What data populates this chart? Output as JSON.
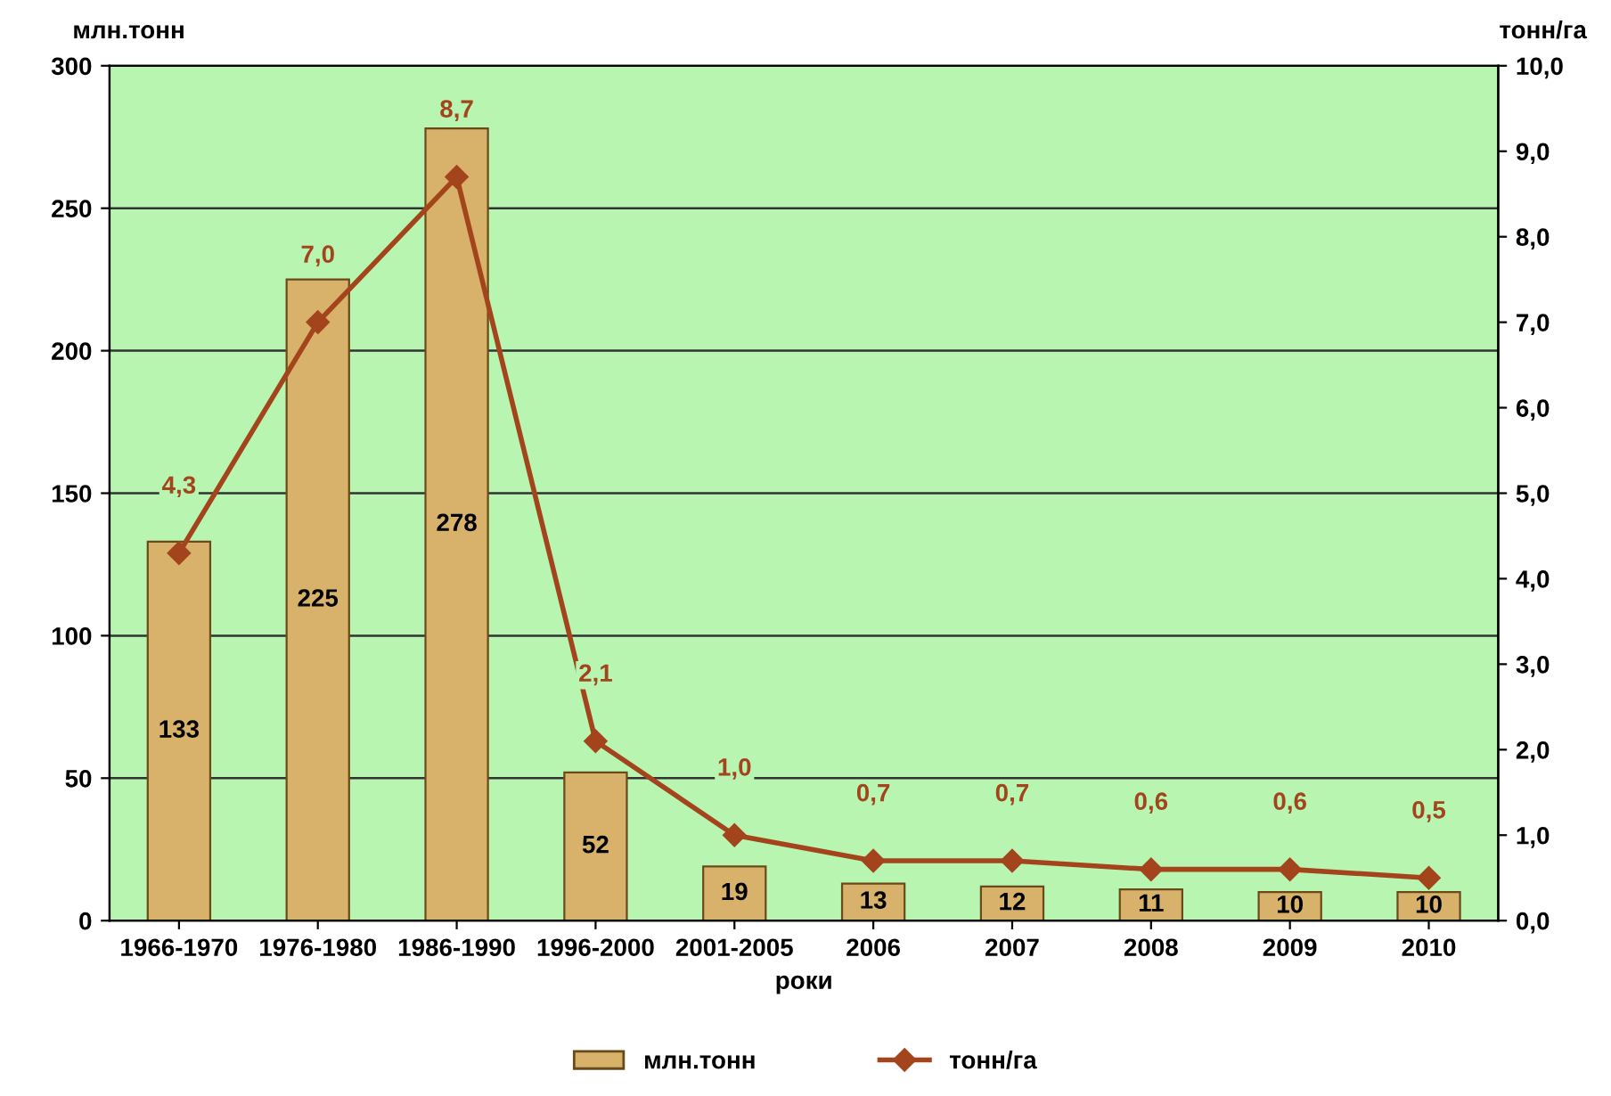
{
  "chart_data": {
    "type": "bar",
    "xlabel": "роки",
    "ylabel": "млн.тонн",
    "y2label": "тонн/га",
    "categories": [
      "1966-1970",
      "1976-1980",
      "1986-1990",
      "1996-2000",
      "2001-2005",
      "2006",
      "2007",
      "2008",
      "2009",
      "2010"
    ],
    "series": [
      {
        "name": "млн.тонн",
        "color": "#d8b26a",
        "values": [
          133,
          225,
          278,
          52,
          19,
          13,
          12,
          11,
          10,
          10
        ],
        "data_labels": true
      },
      {
        "name": "тонн/га",
        "type": "line",
        "axis": "y2",
        "color": "#a3441c",
        "marker": "diamond",
        "values": [
          4.3,
          7.0,
          8.7,
          2.1,
          1.0,
          0.7,
          0.7,
          0.6,
          0.6,
          0.5
        ],
        "value_labels": [
          "4,3",
          "7,0",
          "8,7",
          "2,1",
          "1,0",
          "0,7",
          "0,7",
          "0,6",
          "0,6",
          "0,5"
        ]
      }
    ],
    "ylim": [
      0,
      300
    ],
    "yticks": [
      0,
      50,
      100,
      150,
      200,
      250,
      300
    ],
    "y2lim": [
      0,
      10
    ],
    "y2ticks": [
      {
        "value": 0,
        "label": "0,0"
      },
      {
        "value": 1,
        "label": "1,0"
      },
      {
        "value": 2,
        "label": "2,0"
      },
      {
        "value": 3,
        "label": "3,0"
      },
      {
        "value": 4,
        "label": "4,0"
      },
      {
        "value": 5,
        "label": "5,0"
      },
      {
        "value": 6,
        "label": "6,0"
      },
      {
        "value": 7,
        "label": "7,0"
      },
      {
        "value": 8,
        "label": "8,0"
      },
      {
        "value": 9,
        "label": "9,0"
      },
      {
        "value": 10,
        "label": "10,0"
      }
    ],
    "grid": "y",
    "legend": "bottom"
  }
}
